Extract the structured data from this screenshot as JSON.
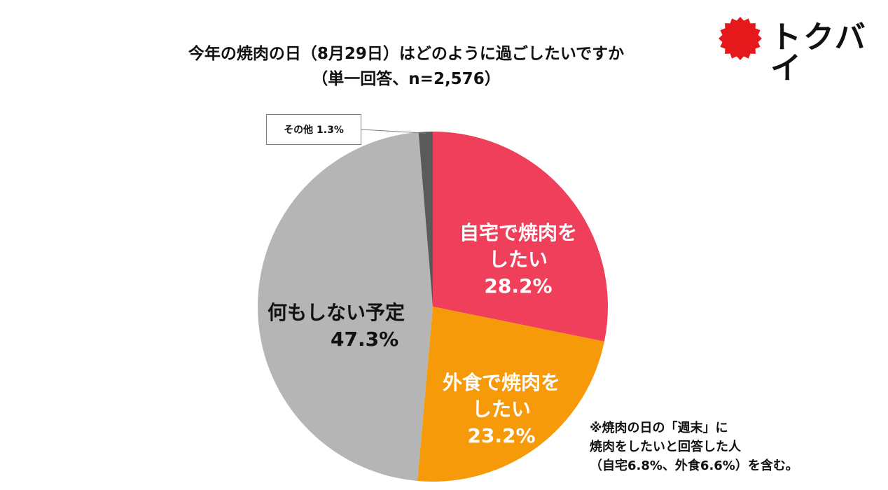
{
  "title_line1": "今年の焼肉の日（8月29日）はどのように過ごしたいですか",
  "title_line2": "（単一回答、n=2,576）",
  "brand": {
    "name": "トクバイ",
    "icon": "red-sun-badge",
    "color": "#e5191c"
  },
  "chart_data": {
    "type": "pie",
    "title": "今年の焼肉の日（8月29日）はどのように過ごしたいですか",
    "subtitle": "（単一回答、n=2,576）",
    "slices": [
      {
        "label": "自宅で焼肉をしたい",
        "value": 28.2,
        "color": "#ef3f5a"
      },
      {
        "label": "外食で焼肉をしたい",
        "value": 23.2,
        "color": "#f79a0a"
      },
      {
        "label": "何もしない予定",
        "value": 47.3,
        "color": "#b5b5b5"
      },
      {
        "label": "その他",
        "value": 1.3,
        "color": "#5a5a5a"
      }
    ]
  },
  "labels": {
    "home_line1": "自宅で焼肉を",
    "home_line2": "したい",
    "home_pct": "28.2%",
    "eatout_line1": "外食で焼肉を",
    "eatout_line2": "したい",
    "eatout_pct": "23.2%",
    "nothing_line1": "何もしない予定",
    "nothing_pct": "47.3%",
    "other": "その他 1.3%"
  },
  "note": {
    "line1": "※焼肉の日の「週末」に",
    "line2": "焼肉をしたいと回答した人",
    "line3": "（自宅6.8%、外食6.6%）を含む。"
  }
}
